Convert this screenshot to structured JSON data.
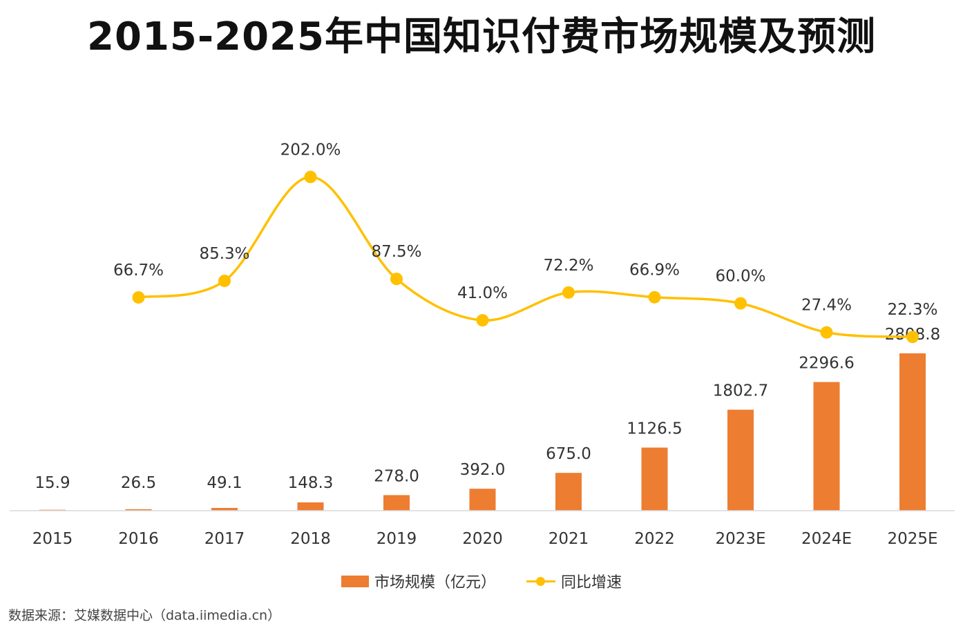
{
  "title": "2015-2025年中国知识付费市场规模及预测",
  "source": "数据来源：艾媒数据中心（data.iimedia.cn）",
  "colors": {
    "bar": "#ED7D31",
    "line": "#FFC000",
    "axis": "#D9D9D9",
    "text": "#333333"
  },
  "chart_data": {
    "type": "bar",
    "title": "2015-2025年中国知识付费市场规模及预测",
    "categories": [
      "2015",
      "2016",
      "2017",
      "2018",
      "2019",
      "2020",
      "2021",
      "2022",
      "2023E",
      "2024E",
      "2025E"
    ],
    "legend_position": "bottom",
    "grid": false,
    "series": [
      {
        "name": "市场规模（亿元）",
        "type": "bar",
        "values": [
          15.9,
          26.5,
          49.1,
          148.3,
          278.0,
          392.0,
          675.0,
          1126.5,
          1802.7,
          2296.6,
          2808.8
        ],
        "labels": [
          "15.9",
          "26.5",
          "49.1",
          "148.3",
          "278.0",
          "392.0",
          "675.0",
          "1126.5",
          "1802.7",
          "2296.6",
          "2808.8"
        ]
      },
      {
        "name": "同比增速",
        "type": "line",
        "values": [
          null,
          66.7,
          85.3,
          202.0,
          87.5,
          41.0,
          72.2,
          66.9,
          60.0,
          27.4,
          22.3
        ],
        "labels": [
          "",
          "66.7%",
          "85.3%",
          "202.0%",
          "87.5%",
          "41.0%",
          "72.2%",
          "66.9%",
          "60.0%",
          "27.4%",
          "22.3%"
        ]
      }
    ]
  }
}
